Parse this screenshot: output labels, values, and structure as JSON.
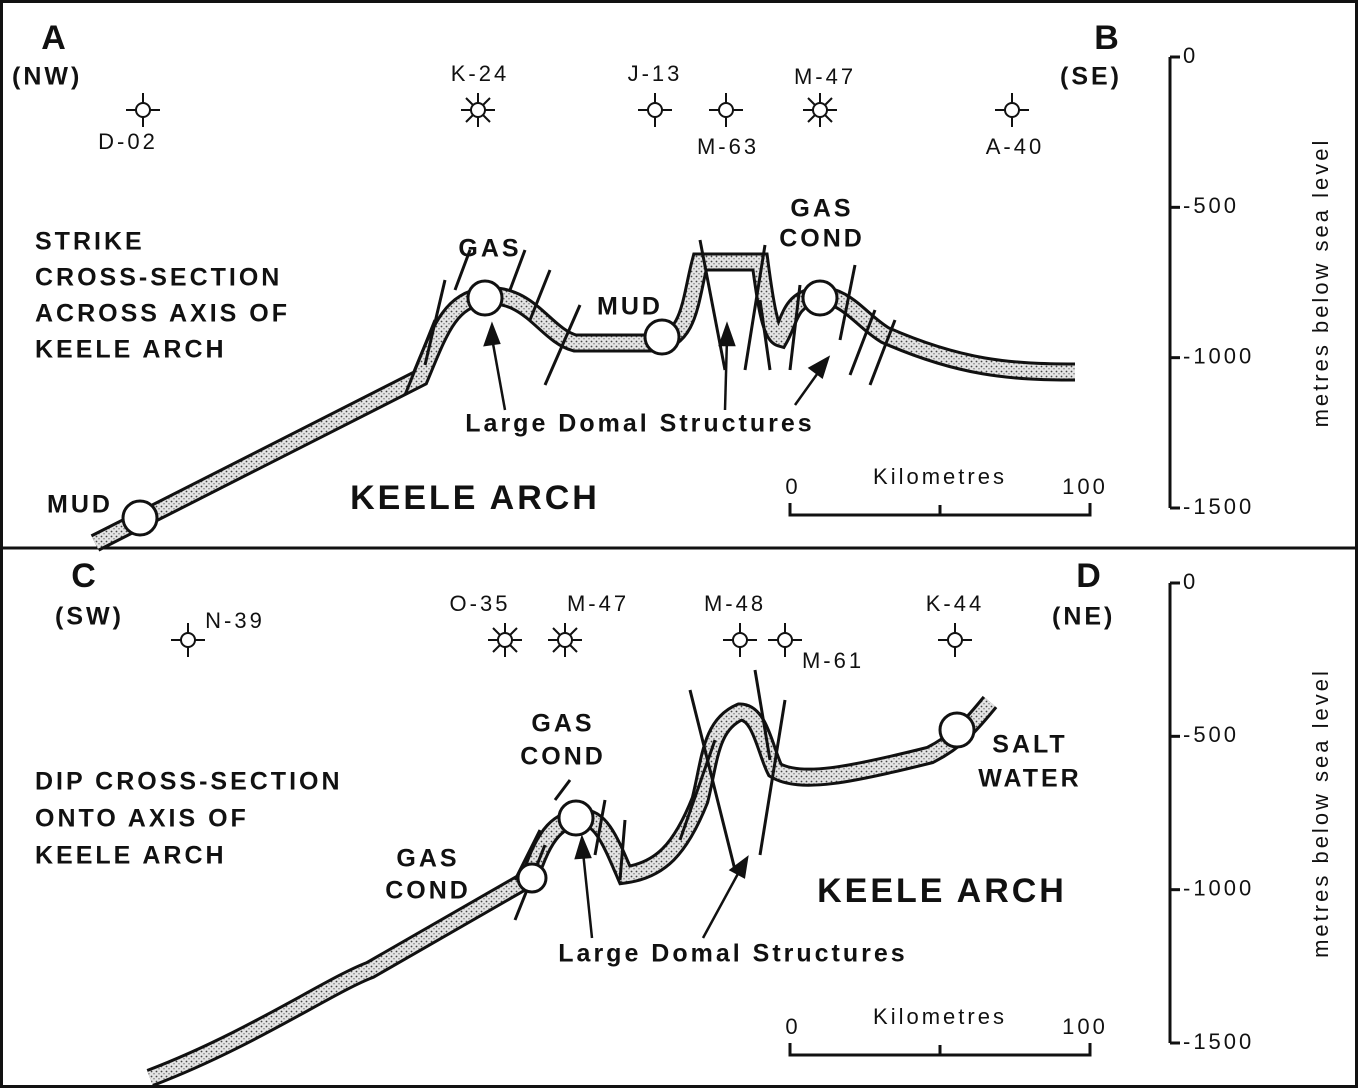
{
  "panels": [
    {
      "end_left": {
        "letter": "A",
        "direction": "(NW)"
      },
      "end_right": {
        "letter": "B",
        "direction": "(SE)"
      },
      "wells": [
        "D-02",
        "K-24",
        "J-13",
        "M-63",
        "M-47",
        "A-40"
      ],
      "title_lines": [
        "STRIKE",
        "CROSS-SECTION",
        "ACROSS AXIS OF",
        "KEELE ARCH"
      ],
      "fluids": [
        [
          "GAS"
        ],
        [
          "MUD"
        ],
        [
          "GAS",
          "COND"
        ],
        [
          "MUD"
        ]
      ],
      "structure_label": "Large Domal Structures",
      "arch_label": "KEELE ARCH",
      "scale": {
        "title": "Kilometres",
        "start": 0,
        "end": 100
      },
      "depth_axis": {
        "title": "metres below sea level",
        "ticks": [
          0,
          -500,
          -1000,
          -1500
        ]
      }
    },
    {
      "end_left": {
        "letter": "C",
        "direction": "(SW)"
      },
      "end_right": {
        "letter": "D",
        "direction": "(NE)"
      },
      "wells": [
        "N-39",
        "O-35",
        "M-47",
        "M-48",
        "M-61",
        "K-44"
      ],
      "title_lines": [
        "DIP CROSS-SECTION",
        "ONTO AXIS OF",
        "KEELE ARCH"
      ],
      "fluids": [
        [
          "GAS",
          "COND"
        ],
        [
          "GAS",
          "COND"
        ],
        [
          "SALT",
          "WATER"
        ]
      ],
      "structure_label": "Large Domal Structures",
      "arch_label": "KEELE ARCH",
      "scale": {
        "title": "Kilometres",
        "start": 0,
        "end": 100
      },
      "depth_axis": {
        "title": "metres below sea level",
        "ticks": [
          0,
          -500,
          -1000,
          -1500
        ]
      }
    }
  ]
}
